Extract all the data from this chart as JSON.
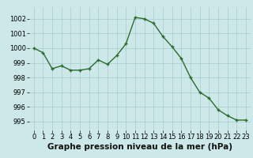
{
  "x": [
    0,
    1,
    2,
    3,
    4,
    5,
    6,
    7,
    8,
    9,
    10,
    11,
    12,
    13,
    14,
    15,
    16,
    17,
    18,
    19,
    20,
    21,
    22,
    23
  ],
  "y": [
    1000.0,
    999.7,
    998.6,
    998.8,
    998.5,
    998.5,
    998.6,
    999.2,
    998.9,
    999.5,
    1000.3,
    1002.1,
    1002.0,
    1001.7,
    1000.8,
    1000.1,
    999.3,
    998.0,
    997.0,
    996.6,
    995.8,
    995.4,
    995.1,
    995.1
  ],
  "line_color": "#2d6b2d",
  "marker_color": "#2d6b2d",
  "bg_color": "#cce8e8",
  "grid_color": "#aacccc",
  "xlabel": "Graphe pression niveau de la mer (hPa)",
  "xlabel_fontsize": 7.5,
  "ytick_labels": [
    "995",
    "996",
    "997",
    "998",
    "999",
    "1000",
    "1001",
    "1002"
  ],
  "ylim": [
    994.4,
    1002.8
  ],
  "xlim": [
    -0.5,
    23.5
  ],
  "yticks": [
    995,
    996,
    997,
    998,
    999,
    1000,
    1001,
    1002
  ],
  "xticks": [
    0,
    1,
    2,
    3,
    4,
    5,
    6,
    7,
    8,
    9,
    10,
    11,
    12,
    13,
    14,
    15,
    16,
    17,
    18,
    19,
    20,
    21,
    22,
    23
  ],
  "tick_fontsize": 6,
  "linewidth": 1.0,
  "markersize": 3.0
}
